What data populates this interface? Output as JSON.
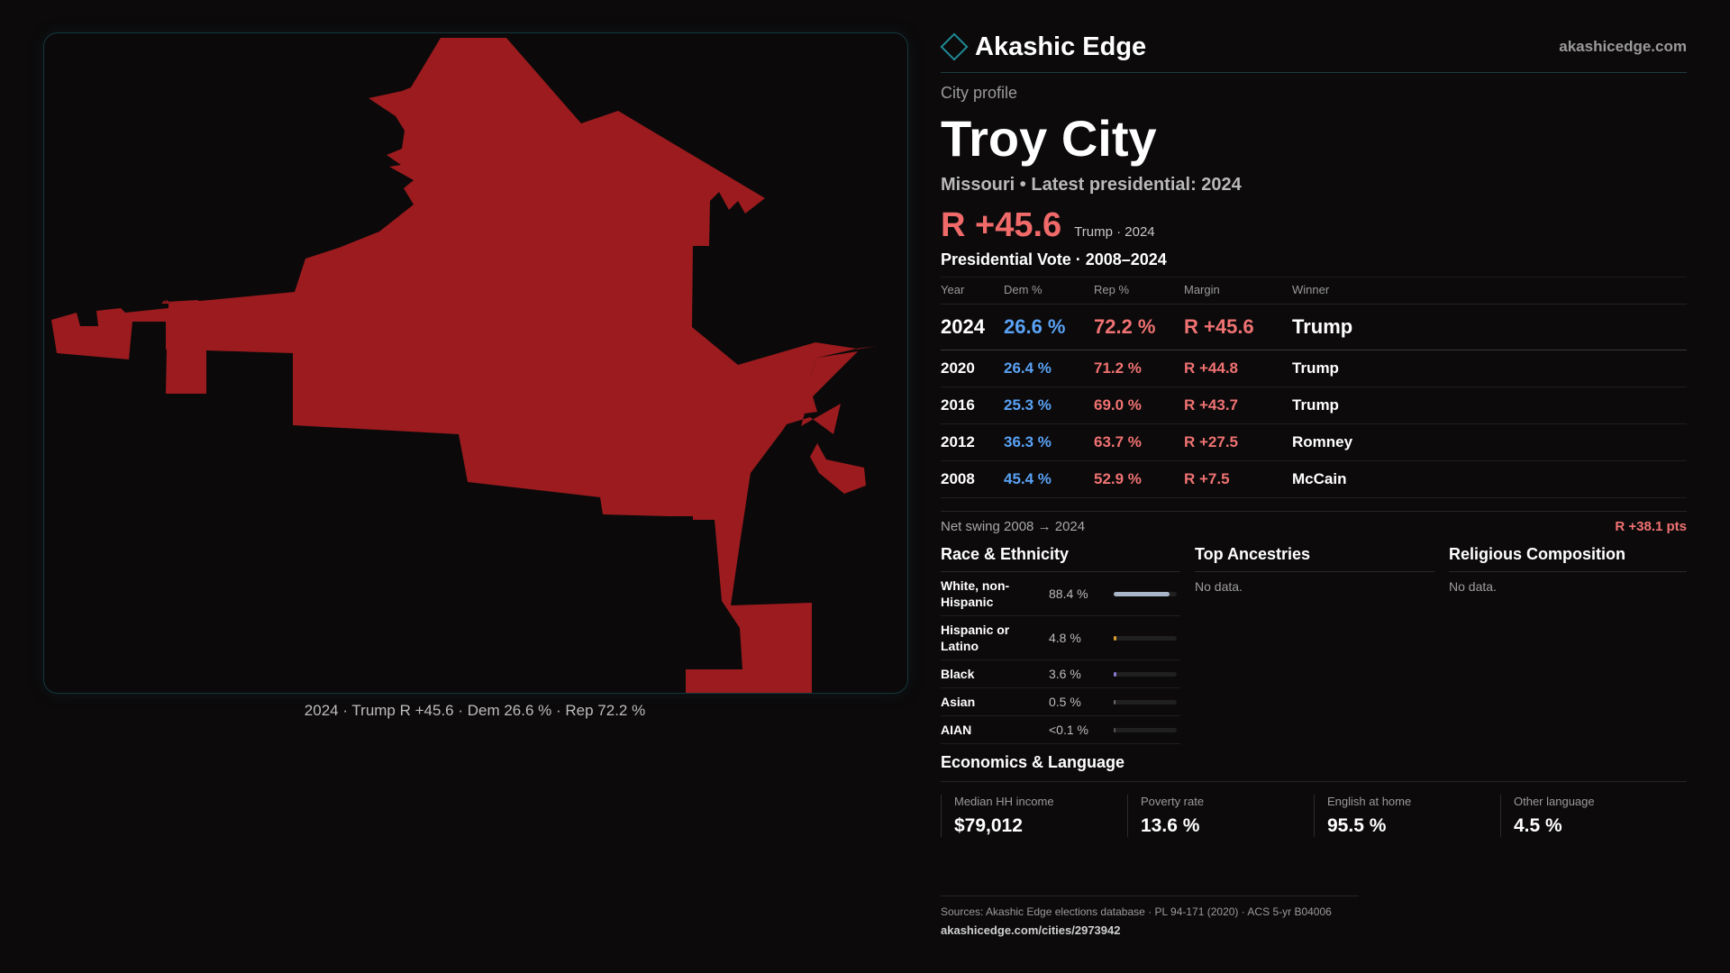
{
  "map": {
    "caption": "2024 · Trump R +45.6 · Dem 26.6 % · Rep 72.2 %",
    "fill_color": "#9b1b1e"
  },
  "header": {
    "brand": "Akashic Edge",
    "site": "akashicedge.com",
    "logo_icon": "diamond-outline"
  },
  "profile": {
    "kicker": "City profile",
    "city": "Troy City",
    "subtitle": "Missouri • Latest presidential: 2024",
    "margin": "R +45.6",
    "margin_note": "Trump · 2024"
  },
  "votes": {
    "title": "Presidential Vote · 2008–2024",
    "columns": [
      "Year",
      "Dem %",
      "Rep %",
      "Margin",
      "Winner"
    ],
    "rows": [
      {
        "year": "2024",
        "dem": "26.6 %",
        "rep": "72.2 %",
        "margin": "R +45.6",
        "winner": "Trump"
      },
      {
        "year": "2020",
        "dem": "26.4 %",
        "rep": "71.2 %",
        "margin": "R +44.8",
        "winner": "Trump"
      },
      {
        "year": "2016",
        "dem": "25.3 %",
        "rep": "69.0 %",
        "margin": "R +43.7",
        "winner": "Trump"
      },
      {
        "year": "2012",
        "dem": "36.3 %",
        "rep": "63.7 %",
        "margin": "R +27.5",
        "winner": "Romney"
      },
      {
        "year": "2008",
        "dem": "45.4 %",
        "rep": "52.9 %",
        "margin": "R +7.5",
        "winner": "McCain"
      }
    ],
    "swing_label": "Net swing 2008 → 2024",
    "swing_value": "R +38.1 pts"
  },
  "race": {
    "title": "Race & Ethnicity",
    "rows": [
      {
        "name": "White, non-Hispanic",
        "pct": "88.4 %",
        "share": 0.884,
        "color": "#a9b6c8"
      },
      {
        "name": "Hispanic or Latino",
        "pct": "4.8 %",
        "share": 0.048,
        "color": "#e0a030"
      },
      {
        "name": "Black",
        "pct": "3.6 %",
        "share": 0.036,
        "color": "#8a7ad8"
      },
      {
        "name": "Asian",
        "pct": "0.5 %",
        "share": 0.005,
        "color": "#6a6a6a"
      },
      {
        "name": "AIAN",
        "pct": "<0.1 %",
        "share": 0.001,
        "color": "#555555"
      }
    ]
  },
  "ancestries": {
    "title": "Top Ancestries",
    "empty": "No data."
  },
  "religion": {
    "title": "Religious Composition",
    "empty": "No data."
  },
  "economics": {
    "title": "Economics & Language",
    "stats": [
      {
        "label": "Median HH income",
        "value": "$79,012"
      },
      {
        "label": "Poverty rate",
        "value": "13.6 %"
      },
      {
        "label": "English at home",
        "value": "95.5 %"
      },
      {
        "label": "Other language",
        "value": "4.5 %"
      }
    ]
  },
  "footer": {
    "sources": "Sources: Akashic Edge elections database · PL 94-171 (2020) · ACS 5-yr B04006",
    "url": "akashicedge.com/cities/2973942"
  }
}
